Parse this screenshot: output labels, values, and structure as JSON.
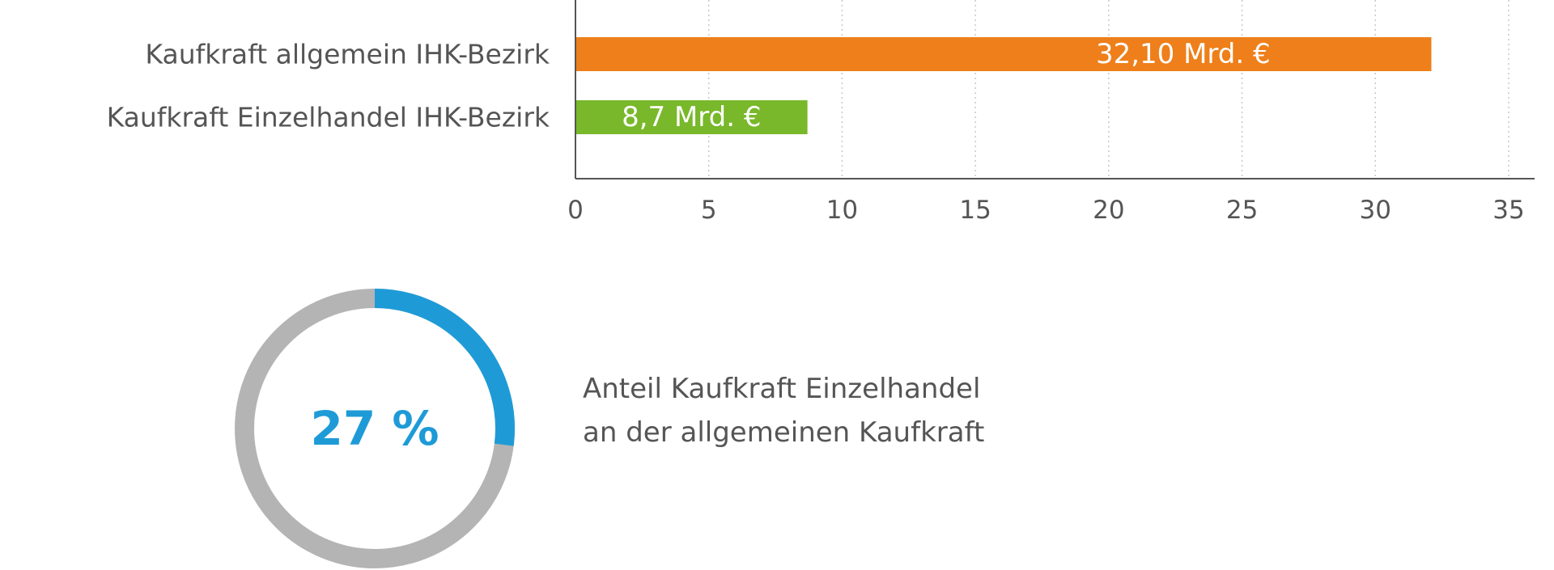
{
  "chart_data": [
    {
      "type": "bar",
      "orientation": "horizontal",
      "categories": [
        "Kaufkraft allgemein IHK-Bezirk",
        "Kaufkraft Einzelhandel IHK-Bezirk"
      ],
      "values": [
        32.1,
        8.7
      ],
      "value_labels": [
        "32,10 Mrd. €",
        "8,7 Mrd. €"
      ],
      "bar_colors": [
        "#ee7f1a",
        "#78b82a"
      ],
      "xlim": [
        0,
        35
      ],
      "x_ticks": [
        0,
        5,
        10,
        15,
        20,
        25,
        30,
        35
      ],
      "x_tick_labels": [
        "0",
        "5",
        "10",
        "15",
        "20",
        "25",
        "30",
        "35"
      ],
      "grid": "vertical dotted",
      "title": "",
      "xlabel": "",
      "ylabel": ""
    },
    {
      "type": "pie",
      "style": "donut",
      "value_percent": 27,
      "center_label": "27 %",
      "caption_lines": [
        "Anteil Kaufkraft Einzelhandel",
        "an der allgemeinen Kaufkraft"
      ],
      "colors": {
        "value": "#1e9bd7",
        "remainder": "#b4b4b4"
      }
    }
  ]
}
